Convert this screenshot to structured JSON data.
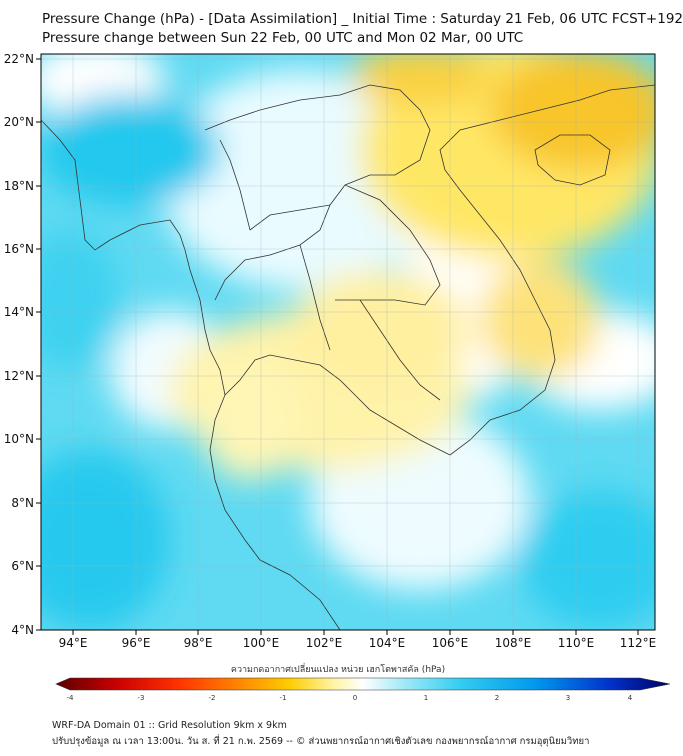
{
  "title": {
    "line1": "Pressure Change (hPa) - [Data Assimilation] _ Initial Time : Saturday 21 Feb, 06 UTC FCST+192",
    "line2": "Pressure change between Sun 22 Feb, 00 UTC and Mon 02 Mar, 00 UTC"
  },
  "map": {
    "lat_labels": [
      "22°N",
      "20°N",
      "18°N",
      "16°N",
      "14°N",
      "12°N",
      "10°N",
      "8°N",
      "6°N",
      "4°N"
    ],
    "lon_labels": [
      "94°E",
      "96°E",
      "98°E",
      "100°E",
      "102°E",
      "104°E",
      "106°E",
      "108°E",
      "110°E",
      "112°E"
    ],
    "extent": {
      "lon_min": 93.0,
      "lon_max": 112.6,
      "lat_min": 4.0,
      "lat_max": 22.2
    },
    "fill_colors": {
      "strong_positive": "#22ccee",
      "positive": "#66ddf2",
      "near_zero": "#ffffff",
      "negative": "#fff090",
      "strong_negative": "#f8cc30"
    }
  },
  "colorbar": {
    "title": "ความกดอากาศเปลี่ยนแปลง หน่วย เฮกโตพาสคัล (hPa)",
    "ticks": [
      "-4",
      "-3",
      "-2",
      "-1",
      "0",
      "1",
      "2",
      "3",
      "4"
    ],
    "range": [
      -4,
      4
    ],
    "colors": [
      "#5a0000",
      "#cc0000",
      "#ff3300",
      "#ff8800",
      "#ffcc00",
      "#fff3a0",
      "#ffffff",
      "#a8ecf8",
      "#33ccf0",
      "#0099ee",
      "#0033cc",
      "#000066"
    ]
  },
  "footer": {
    "line1": "WRF-DA Domain 01 :: Grid Resolution 9km x 9km",
    "line2": "ปรับปรุงข้อมูล ณ เวลา 13:00น. วัน ส. ที่ 21 ก.พ. 2569 -- © ส่วนพยากรณ์อากาศเชิงตัวเลข กองพยากรณ์อากาศ กรมอุตุนิยมวิทยา"
  }
}
